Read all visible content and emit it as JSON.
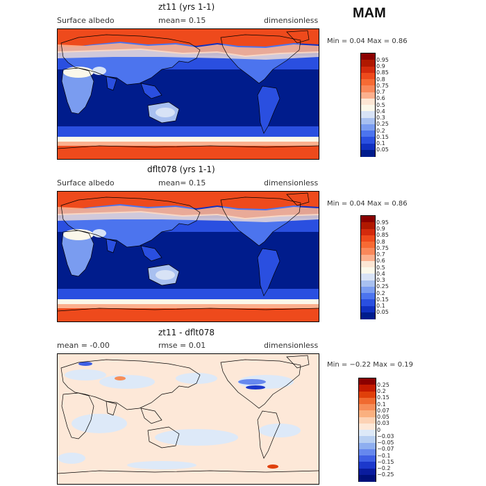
{
  "header": {
    "season": "MAM"
  },
  "panels": [
    {
      "id": "p1",
      "title": "zt11 (yrs 1-1)",
      "left_label": "Surface albedo",
      "mid_label": "mean=     0.15",
      "right_label": "dimensionless",
      "minmax": "Min =     0.04  Max =     0.86",
      "levels": [
        "0.95",
        "0.9",
        "0.85",
        "0.8",
        "0.75",
        "0.7",
        "0.6",
        "0.5",
        "0.4",
        "0.3",
        "0.25",
        "0.2",
        "0.15",
        "0.1",
        "0.05"
      ],
      "colors": [
        "#8b0000",
        "#b01800",
        "#d32a0c",
        "#ee4a1c",
        "#f66a34",
        "#f9885a",
        "#fbb08e",
        "#fce6d4",
        "#fbf8ea",
        "#d8e3f6",
        "#a8c0f0",
        "#7a9cf0",
        "#4c74ee",
        "#2a4fe0",
        "#1030c0",
        "#001c8c"
      ]
    },
    {
      "id": "p2",
      "title": "dflt078 (yrs 1-1)",
      "left_label": "Surface albedo",
      "mid_label": "mean=     0.15",
      "right_label": "dimensionless",
      "minmax": "Min =     0.04  Max =     0.86",
      "levels": [
        "0.95",
        "0.9",
        "0.85",
        "0.8",
        "0.75",
        "0.7",
        "0.6",
        "0.5",
        "0.4",
        "0.3",
        "0.25",
        "0.2",
        "0.15",
        "0.1",
        "0.05"
      ],
      "colors": [
        "#8b0000",
        "#b01800",
        "#d32a0c",
        "#ee4a1c",
        "#f66a34",
        "#f9885a",
        "#fbb08e",
        "#fce6d4",
        "#fbf8ea",
        "#d8e3f6",
        "#a8c0f0",
        "#7a9cf0",
        "#4c74ee",
        "#2a4fe0",
        "#1030c0",
        "#001c8c"
      ]
    },
    {
      "id": "p3",
      "title": "zt11 - dflt078",
      "left_label": "mean =    -0.00",
      "mid_label": "rmse =     0.01",
      "right_label": "dimensionless",
      "minmax": "Min =   −0.22  Max =     0.19",
      "levels": [
        "0.25",
        "0.2",
        "0.15",
        "0.1",
        "0.07",
        "0.05",
        "0.03",
        "0",
        "−0.03",
        "−0.05",
        "−0.07",
        "−0.1",
        "−0.15",
        "−0.2",
        "−0.25"
      ],
      "colors": [
        "#8b0000",
        "#c41a00",
        "#e0400a",
        "#f06a30",
        "#f78d58",
        "#fab07f",
        "#fcd2b4",
        "#fde8d8",
        "#dde9f8",
        "#b8cff2",
        "#8eaef0",
        "#6688ee",
        "#3e5fe4",
        "#1c38cc",
        "#0a1c9e",
        "#00107a"
      ]
    }
  ],
  "chart_data": {
    "type": "heatmap",
    "season": "MAM",
    "variable": "Surface albedo",
    "units": "dimensionless",
    "maps": [
      {
        "name": "zt11 (yrs 1-1)",
        "mean": 0.15,
        "min": 0.04,
        "max": 0.86
      },
      {
        "name": "dflt078 (yrs 1-1)",
        "mean": 0.15,
        "min": 0.04,
        "max": 0.86
      },
      {
        "name": "zt11 - dflt078",
        "mean": -0.0,
        "rmse": 0.01,
        "min": -0.22,
        "max": 0.19
      }
    ]
  }
}
